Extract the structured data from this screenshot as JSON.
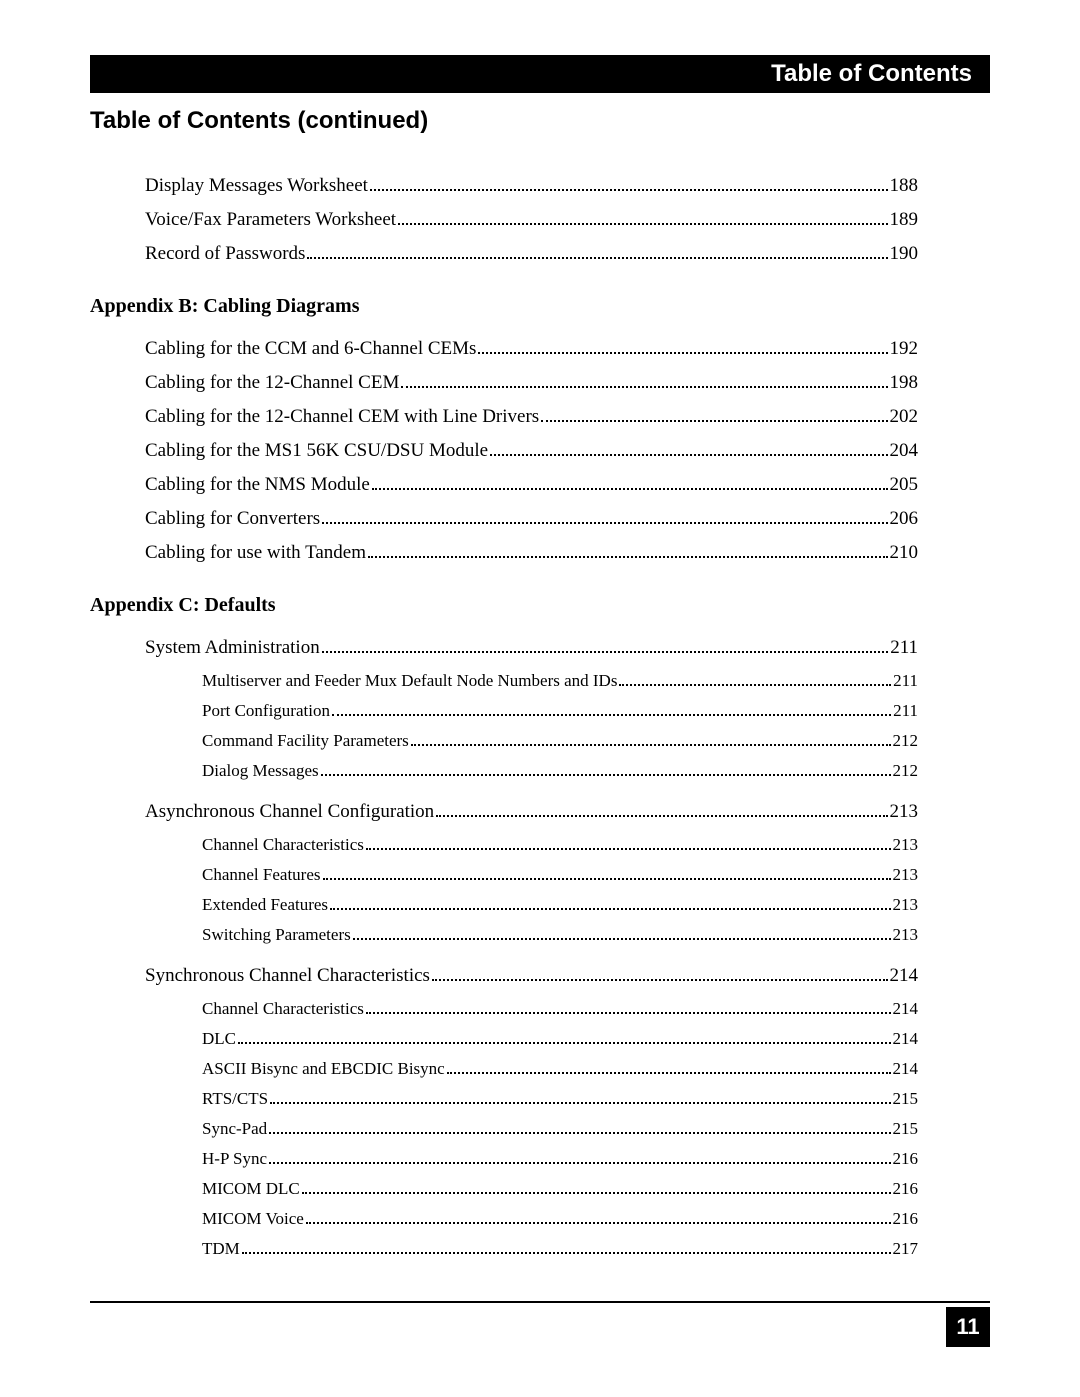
{
  "header": {
    "title": "Table of Contents"
  },
  "section_title": "Table of Contents (continued)",
  "page_number": "11",
  "pre_entries": [
    {
      "label": "Display Messages Worksheet",
      "page": "188"
    },
    {
      "label": "Voice/Fax Parameters Worksheet",
      "page": "189"
    },
    {
      "label": "Record of Passwords ",
      "page": "190"
    }
  ],
  "appendix_b": {
    "heading": "Appendix B:  Cabling Diagrams",
    "entries": [
      {
        "label": "Cabling for the CCM and 6-Channel CEMs ",
        "page": "192"
      },
      {
        "label": "Cabling for the 12-Channel CEM ",
        "page": "198"
      },
      {
        "label": "Cabling for the 12-Channel CEM with Line Drivers",
        "page": "202"
      },
      {
        "label": "Cabling for the MS1 56K CSU/DSU Module",
        "page": "204"
      },
      {
        "label": "Cabling for the NMS Module",
        "page": "205"
      },
      {
        "label": "Cabling for Converters ",
        "page": "206"
      },
      {
        "label": "Cabling for use with Tandem ",
        "page": "210"
      }
    ]
  },
  "appendix_c": {
    "heading": "Appendix C:  Defaults",
    "groups": [
      {
        "main": {
          "label": "System Administration",
          "page": "211"
        },
        "subs": [
          {
            "label": "Multiserver and Feeder Mux Default Node Numbers and IDs ",
            "page": "211"
          },
          {
            "label": "Port Configuration ",
            "page": "211"
          },
          {
            "label": "Command Facility Parameters",
            "page": "212"
          },
          {
            "label": "Dialog Messages",
            "page": "212"
          }
        ]
      },
      {
        "main": {
          "label": "Asynchronous Channel Configuration",
          "page": "213"
        },
        "subs": [
          {
            "label": "Channel Characteristics",
            "page": "213"
          },
          {
            "label": "Channel Features ",
            "page": "213"
          },
          {
            "label": "Extended Features",
            "page": "213"
          },
          {
            "label": "Switching Parameters",
            "page": "213"
          }
        ]
      },
      {
        "main": {
          "label": "Synchronous Channel Characteristics",
          "page": "214"
        },
        "subs": [
          {
            "label": "Channel Characteristics",
            "page": "214"
          },
          {
            "label": "DLC",
            "page": "214"
          },
          {
            "label": "ASCII Bisync and EBCDIC Bisync ",
            "page": "214"
          },
          {
            "label": "RTS/CTS ",
            "page": "215"
          },
          {
            "label": "Sync-Pad",
            "page": "215"
          },
          {
            "label": "H-P Sync",
            "page": "216"
          },
          {
            "label": "MICOM DLC ",
            "page": "216"
          },
          {
            "label": "MICOM Voice",
            "page": "216"
          },
          {
            "label": "TDM ",
            "page": "217"
          }
        ]
      }
    ]
  }
}
